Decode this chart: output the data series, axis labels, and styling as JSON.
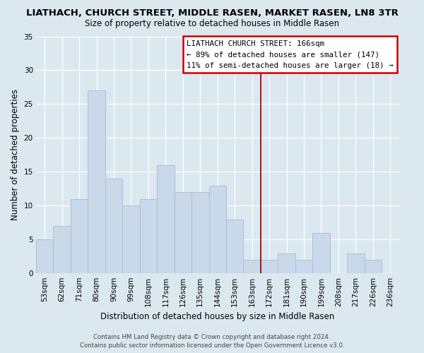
{
  "title": "LIATHACH, CHURCH STREET, MIDDLE RASEN, MARKET RASEN, LN8 3TR",
  "subtitle": "Size of property relative to detached houses in Middle Rasen",
  "xlabel": "Distribution of detached houses by size in Middle Rasen",
  "ylabel": "Number of detached properties",
  "bar_color": "#c9d9ea",
  "bar_edgecolor": "#a8c0d6",
  "bin_labels": [
    "53sqm",
    "62sqm",
    "71sqm",
    "80sqm",
    "90sqm",
    "99sqm",
    "108sqm",
    "117sqm",
    "126sqm",
    "135sqm",
    "144sqm",
    "153sqm",
    "163sqm",
    "172sqm",
    "181sqm",
    "190sqm",
    "199sqm",
    "208sqm",
    "217sqm",
    "226sqm",
    "236sqm"
  ],
  "bar_heights": [
    5,
    7,
    11,
    27,
    14,
    10,
    11,
    16,
    12,
    12,
    13,
    8,
    2,
    2,
    3,
    2,
    6,
    0,
    3,
    2,
    0
  ],
  "ylim": [
    0,
    35
  ],
  "yticks": [
    0,
    5,
    10,
    15,
    20,
    25,
    30,
    35
  ],
  "vline_color": "#aa0000",
  "annotation_title": "LIATHACH CHURCH STREET: 166sqm",
  "annotation_line1": "← 89% of detached houses are smaller (147)",
  "annotation_line2": "11% of semi-detached houses are larger (18) →",
  "footer_line1": "Contains HM Land Registry data © Crown copyright and database right 2024.",
  "footer_line2": "Contains public sector information licensed under the Open Government Licence v3.0.",
  "background_color": "#dce8f0",
  "plot_background": "#dce8f0",
  "grid_color": "#ffffff",
  "title_fontsize": 9.5,
  "subtitle_fontsize": 8.5,
  "axis_label_fontsize": 8.5,
  "tick_fontsize": 7.5
}
